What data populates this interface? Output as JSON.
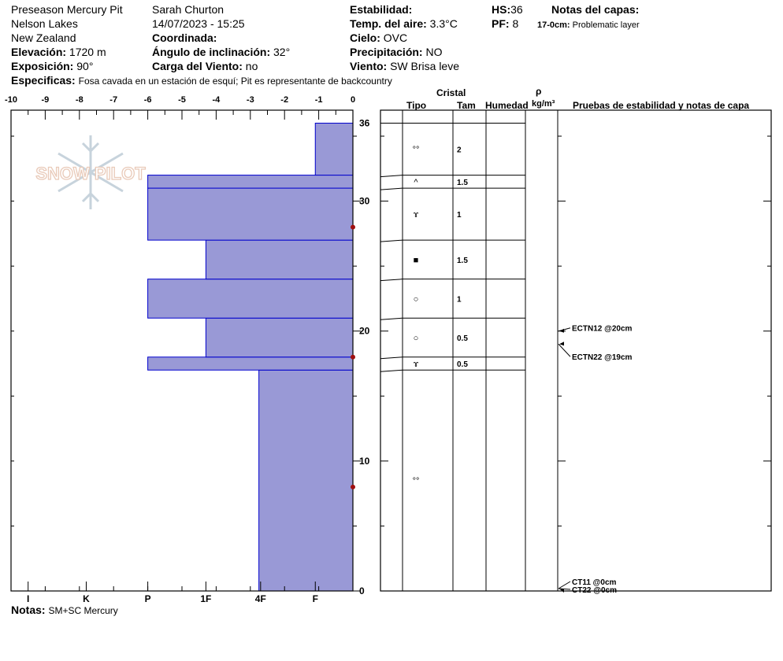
{
  "header": {
    "pit_name": "Preseason Mercury Pit",
    "observer": "Sarah Churton",
    "datetime": "14/07/2023 - 15:25",
    "region": "Nelson Lakes",
    "country": "New Zealand",
    "coord_label": "Coordinada:",
    "elev_label": "Elevación:",
    "elev_value": "1720 m",
    "slope_label": "Ángulo de inclinación:",
    "slope_value": "32°",
    "aspect_label": "Exposición:",
    "aspect_value": "90°",
    "wind_load_label": "Carga del Viento:",
    "wind_load_value": "no",
    "stability_label": "Estabilidad:",
    "air_temp_label": "Temp. del aire:",
    "air_temp_value": "3.3°C",
    "sky_label": "Cielo:",
    "sky_value": "OVC",
    "precip_label": "Precipitación:",
    "precip_value": "NO",
    "wind_label": "Viento:",
    "wind_value": "SW  Brisa leve",
    "hs_label": "HS:",
    "hs_value": "36",
    "pf_label": "PF:",
    "pf_value": "8",
    "layer_notes_label": "Notas del capas:",
    "layer_note_range": "17-0cm:",
    "layer_note_text": "Problematic layer",
    "specifics_label": "Especificas:",
    "specifics_text": "Fosa cavada en un estación de esquí; Pit es representante de backcountry",
    "notes_label": "Notas:",
    "notes_text": "SM+SC Mercury"
  },
  "logo": {
    "text": "SNOW PILOT"
  },
  "colors": {
    "hardness_fill": "#9999d6",
    "hardness_stroke": "#0000cc",
    "marker": "#a01010"
  },
  "chart_data": {
    "type": "bar",
    "orientation": "horizontal",
    "description_x": "Ram hardness index (top axis) / hand hardness (bottom axis)",
    "top_ticks": [
      "-10",
      "-9",
      "-8",
      "-7",
      "-6",
      "-5",
      "-4",
      "-3",
      "-2",
      "-1",
      "0"
    ],
    "top_tick_values": [
      -10,
      -9,
      -8,
      -7,
      -6,
      -5,
      -4,
      -3,
      -2,
      -1,
      0
    ],
    "bottom_ticks": [
      "I",
      "K",
      "P",
      "1F",
      "4F",
      "F"
    ],
    "bottom_tick_values": [
      -9.5,
      -7.8,
      -6,
      -4.3,
      -2.7,
      -1.1
    ],
    "xlim": [
      -10,
      0
    ],
    "ylim": [
      0,
      37
    ],
    "y_ticks": [
      "0",
      "10",
      "20",
      "30",
      "36"
    ],
    "y_tick_values": [
      0,
      10,
      20,
      30,
      36
    ],
    "hardness_layers": [
      {
        "bottom": 0,
        "top": 17,
        "hardness": -2.75
      },
      {
        "bottom": 17,
        "top": 18,
        "hardness": -6
      },
      {
        "bottom": 18,
        "top": 21,
        "hardness": -4.3
      },
      {
        "bottom": 21,
        "top": 24,
        "hardness": -6
      },
      {
        "bottom": 24,
        "top": 27,
        "hardness": -4.3
      },
      {
        "bottom": 27,
        "top": 31,
        "hardness": -6
      },
      {
        "bottom": 31,
        "top": 32,
        "hardness": -6
      },
      {
        "bottom": 32,
        "top": 36,
        "hardness": -1.1
      }
    ],
    "temperature_points": [
      {
        "depth": 8
      },
      {
        "depth": 18
      },
      {
        "depth": 28
      }
    ]
  },
  "table": {
    "crystal_label": "Cristal",
    "type_label": "Tipo",
    "size_label": "Tam",
    "moisture_label": "Humedad",
    "density_label": "ρ",
    "density_unit": "kg/m³",
    "tests_label": "Pruebas de estabilidad y notas de capa",
    "layers": [
      {
        "bottom": 32,
        "top": 36,
        "symbol": "rounds",
        "glyph": "°°",
        "size": "2"
      },
      {
        "bottom": 31,
        "top": 32,
        "symbol": "depth-hoar",
        "glyph": "^",
        "size": "1.5"
      },
      {
        "bottom": 27,
        "top": 31,
        "symbol": "mixed-forms",
        "glyph": "ɤ",
        "size": "1"
      },
      {
        "bottom": 24,
        "top": 27,
        "symbol": "faceted",
        "glyph": "■",
        "size": "1.5"
      },
      {
        "bottom": 21,
        "top": 24,
        "symbol": "melt-form",
        "glyph": "○",
        "size": "1"
      },
      {
        "bottom": 18,
        "top": 21,
        "symbol": "melt-form",
        "glyph": "○",
        "size": "0.5"
      },
      {
        "bottom": 17,
        "top": 18,
        "symbol": "mixed-forms",
        "glyph": "ɤ",
        "size": "0.5"
      },
      {
        "bottom": 0,
        "top": 17,
        "symbol": "rounds",
        "glyph": "°°",
        "size": ""
      }
    ],
    "tests": [
      {
        "depth": 20,
        "label": "ECTN12 @20cm"
      },
      {
        "depth": 19,
        "label": "ECTN22 @19cm"
      },
      {
        "depth": 0,
        "label": "CT11 @0cm"
      },
      {
        "depth": 0,
        "label": "CT22 @0cm"
      }
    ]
  }
}
